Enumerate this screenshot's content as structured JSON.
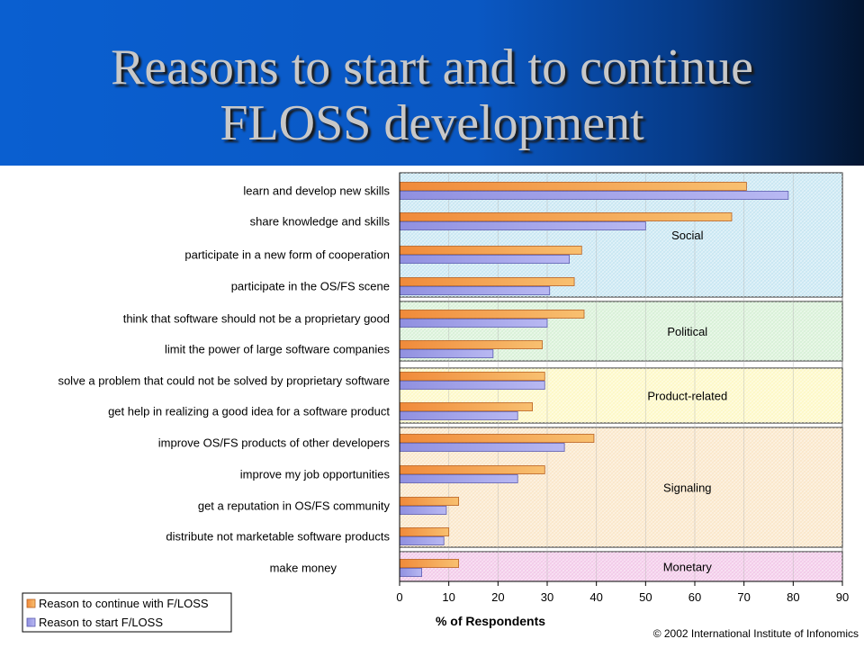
{
  "slide": {
    "title_line1": "Reasons to start and to continue",
    "title_line2": "FLOSS development",
    "copyright": "© 2002 International Institute of Infonomics"
  },
  "chart_data": {
    "type": "bar",
    "orientation": "horizontal",
    "categories": [
      "learn and develop new skills",
      "share knowledge and skills",
      "participate in a new form of cooperation",
      "participate in the OS/FS scene",
      "think that software should not be a proprietary good",
      "limit the power of large software companies",
      "solve a problem that could not be solved by proprietary software",
      "get help in realizing a good idea for a software product",
      "improve OS/FS products of other developers",
      "improve my job opportunities",
      "get a reputation in OS/FS community",
      "distribute not marketable software products",
      "make money"
    ],
    "series": [
      {
        "name": "Reason to continue with F/LOSS",
        "values": [
          70.5,
          67.5,
          37,
          35.5,
          37.5,
          29,
          29.5,
          27,
          39.5,
          29.5,
          12,
          10,
          12
        ]
      },
      {
        "name": "Reason to start F/LOSS",
        "values": [
          79,
          50,
          34.5,
          30.5,
          30,
          19,
          29.5,
          24,
          33.5,
          24,
          9.5,
          9,
          4.5
        ]
      }
    ],
    "groups": [
      {
        "label": "Social",
        "categories": [
          0,
          1,
          2,
          3
        ],
        "color": "#c7e6f2"
      },
      {
        "label": "Political",
        "categories": [
          4,
          5
        ],
        "color": "#d7f0d6"
      },
      {
        "label": "Product-related",
        "categories": [
          6,
          7
        ],
        "color": "#fdf8c4"
      },
      {
        "label": "Signaling",
        "categories": [
          8,
          9,
          10,
          11
        ],
        "color": "#fae6c8"
      },
      {
        "label": "Monetary",
        "categories": [
          12
        ],
        "color": "#f2c8e8"
      }
    ],
    "xlabel": "% of Respondents",
    "xlim": [
      0,
      90
    ],
    "xticks": [
      "0",
      "10",
      "20",
      "30",
      "40",
      "50",
      "60",
      "70",
      "80",
      "90"
    ],
    "legend_position": "bottom-left"
  }
}
